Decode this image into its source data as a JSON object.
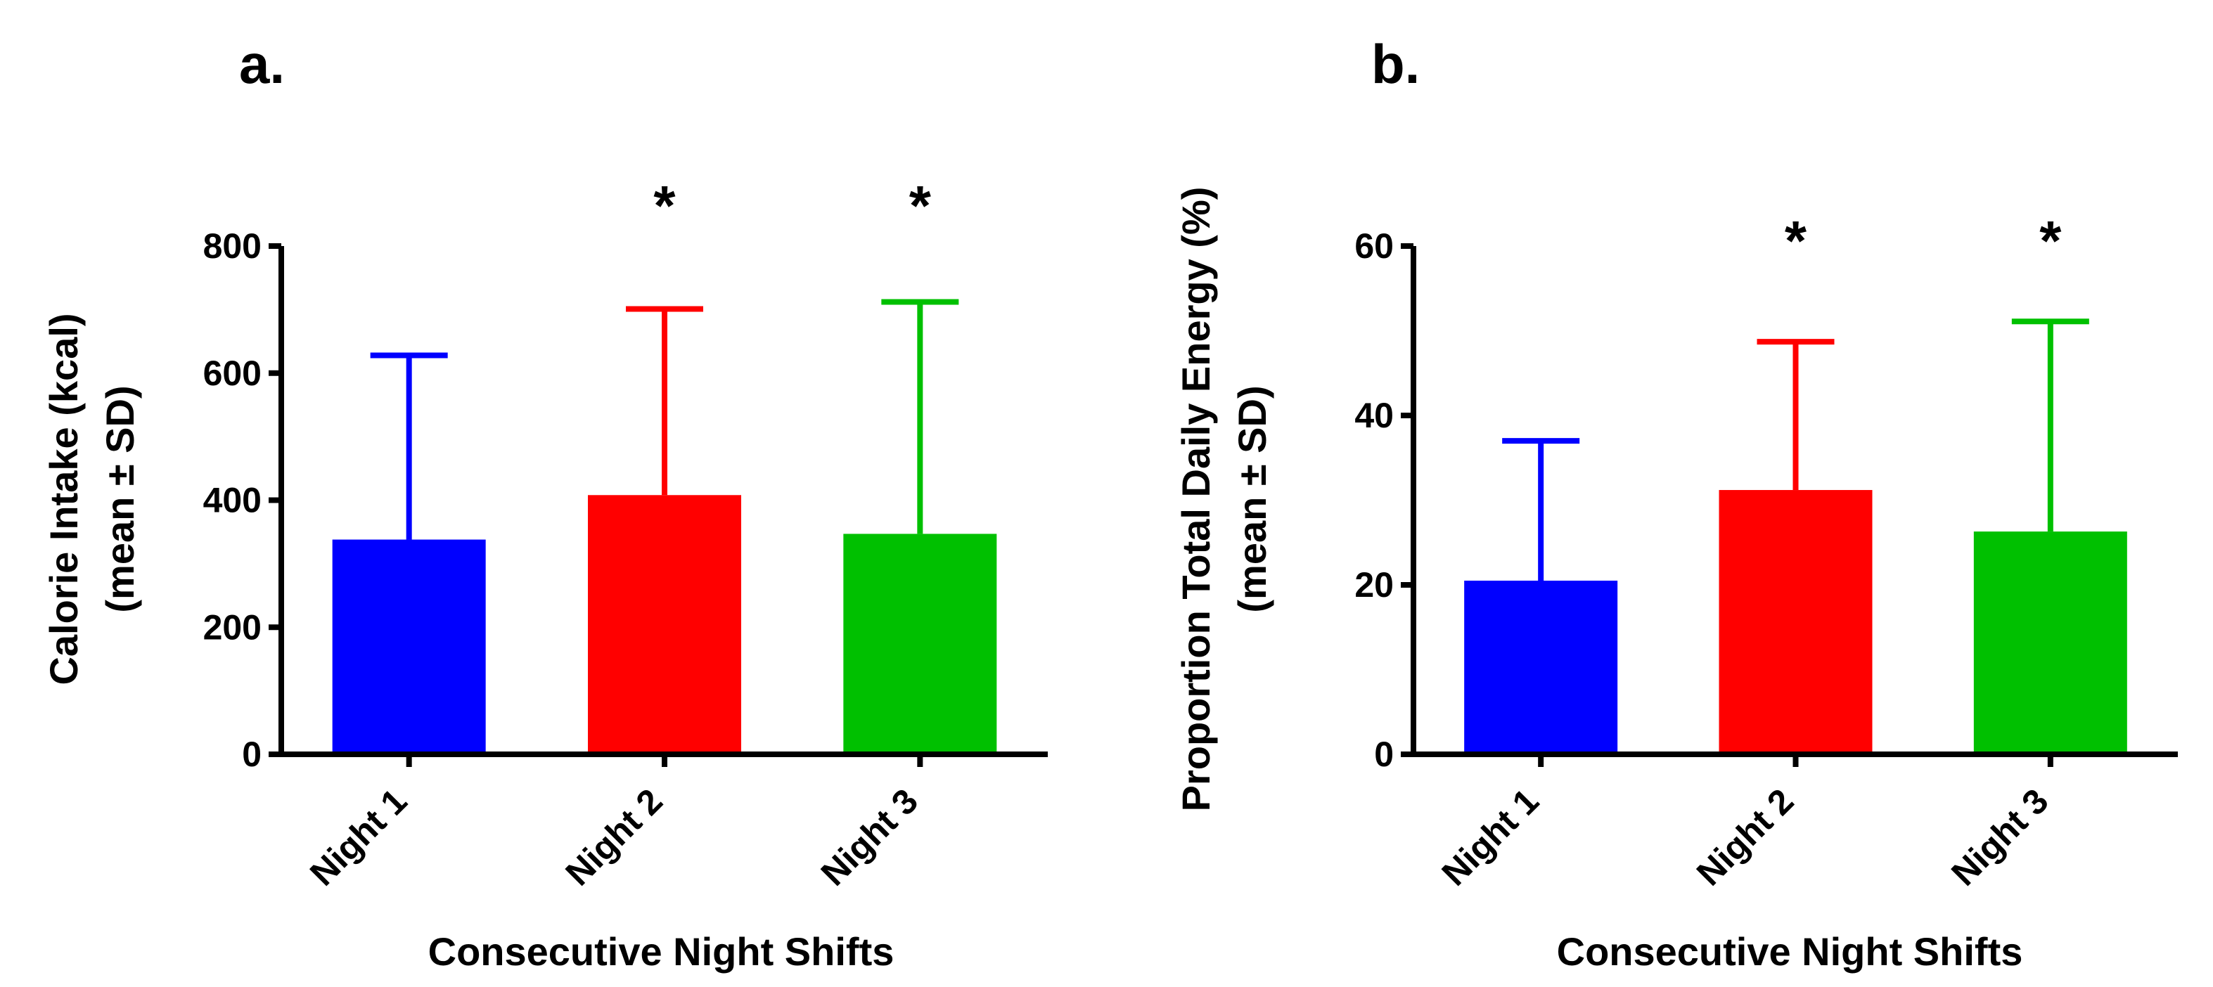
{
  "chart_data": [
    {
      "panel": "a.",
      "type": "bar",
      "categories": [
        "Night 1",
        "Night 2",
        "Night 3"
      ],
      "values": [
        338,
        408,
        347
      ],
      "errors_sd": [
        290,
        293,
        365
      ],
      "colors": [
        "#0000FF",
        "#FF0000",
        "#00C000"
      ],
      "significance": [
        "",
        "*",
        "*"
      ],
      "ylabel_line1": "Calorie Intake (kcal)",
      "ylabel_line2": "(mean ± SD)",
      "xlabel": "Consecutive Night Shifts",
      "ylim": [
        0,
        800
      ],
      "yticks": [
        0,
        200,
        400,
        600,
        800
      ]
    },
    {
      "panel": "b.",
      "type": "bar",
      "categories": [
        "Night 1",
        "Night 2",
        "Night 3"
      ],
      "values": [
        20.5,
        31.2,
        26.3
      ],
      "errors_sd": [
        16.5,
        17.5,
        24.8
      ],
      "colors": [
        "#0000FF",
        "#FF0000",
        "#00C000"
      ],
      "significance": [
        "",
        "*",
        "*"
      ],
      "ylabel_line1": "Proportion Total Daily Energy (%)",
      "ylabel_line2": "(mean ± SD)",
      "xlabel": "Consecutive Night Shifts",
      "ylim": [
        0,
        60
      ],
      "yticks": [
        0,
        20,
        40,
        60
      ]
    }
  ]
}
